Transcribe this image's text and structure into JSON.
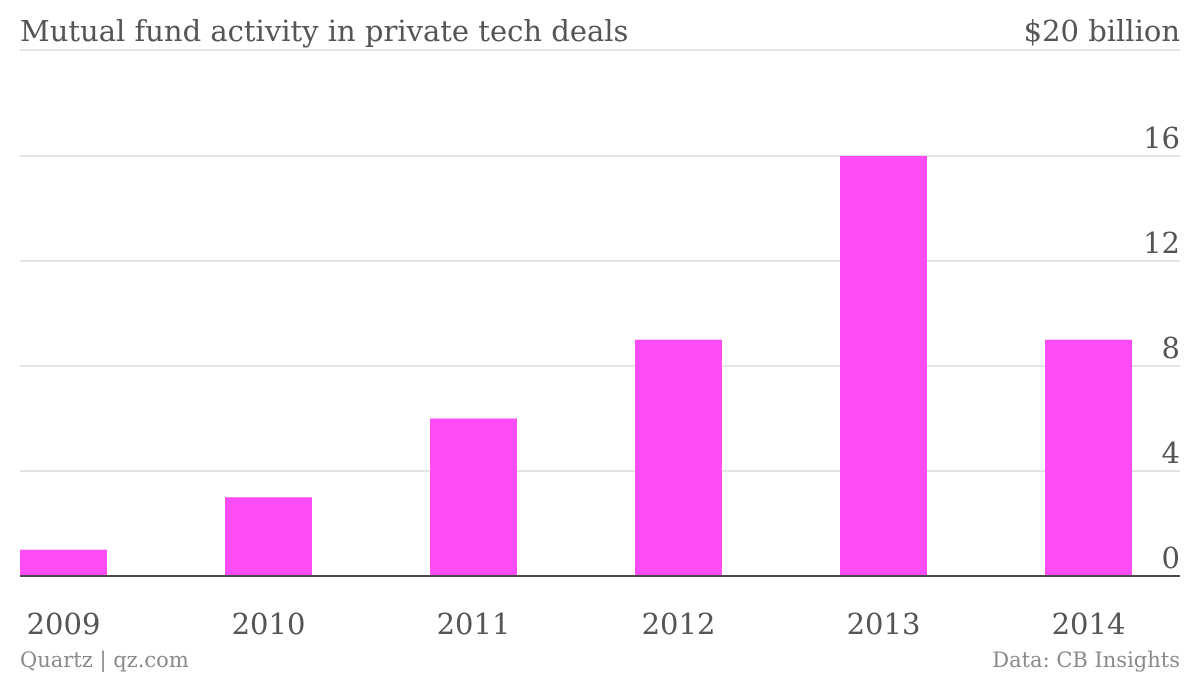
{
  "chart_data": {
    "type": "bar",
    "title": "Mutual fund activity in private tech deals",
    "unit_label": "$20 billion",
    "categories": [
      "2009",
      "2010",
      "2011",
      "2012",
      "2013",
      "2014"
    ],
    "values": [
      1,
      3,
      6,
      9,
      16,
      9
    ],
    "ylim": [
      0,
      20
    ],
    "yticks": [
      0,
      4,
      8,
      12,
      16
    ],
    "ytick_labels": [
      "0",
      "4",
      "8",
      "12",
      "16"
    ],
    "bar_color": "#ff4cf6",
    "grid": true,
    "y_axis_side": "right"
  },
  "footer": {
    "source_left": "Quartz | qz.com",
    "source_right": "Data: CB Insights"
  }
}
